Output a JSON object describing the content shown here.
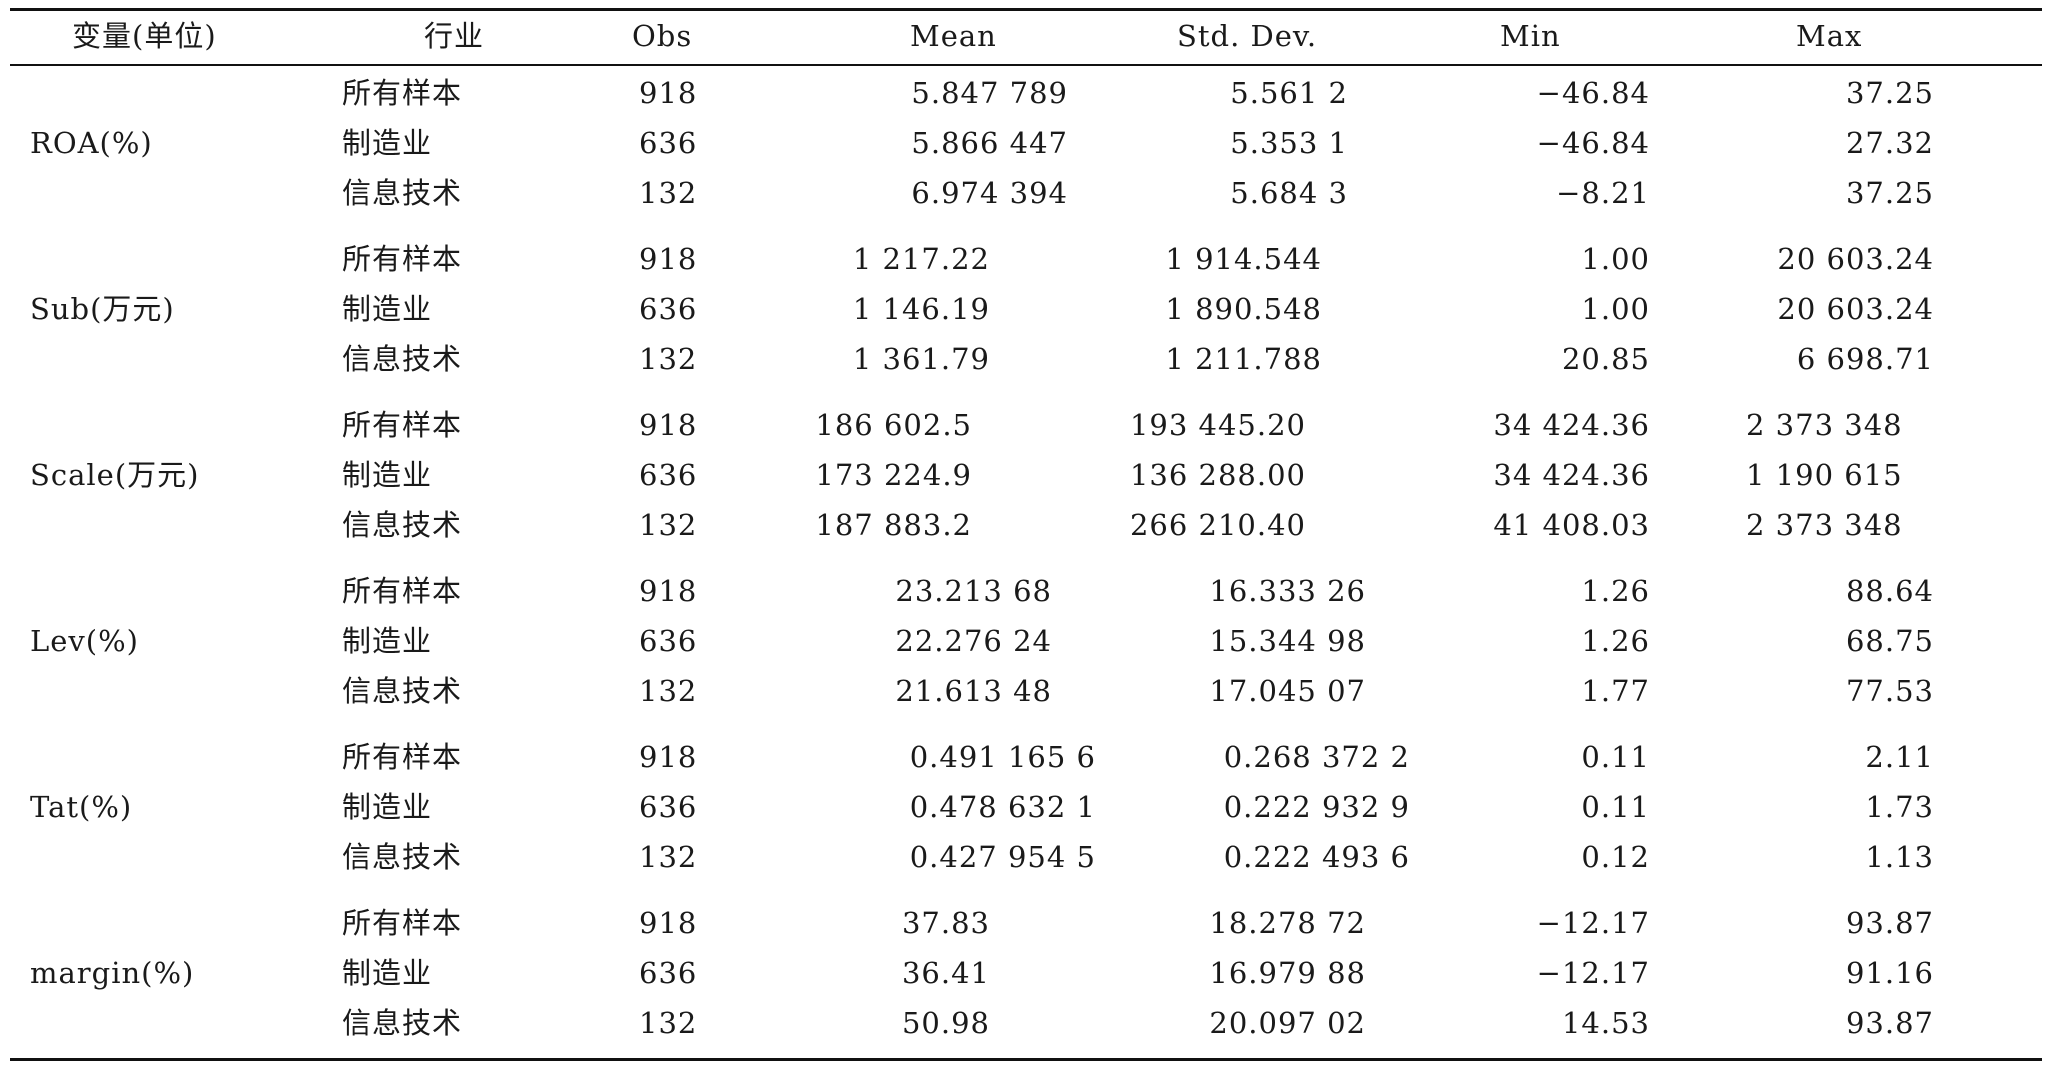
{
  "headers": {
    "variable": "变量(单位)",
    "industry": "行业",
    "obs": "Obs",
    "mean": "Mean",
    "sd": "Std. Dev.",
    "min": "Min",
    "max": "Max"
  },
  "groups": [
    {
      "variable": "ROA(%)",
      "rows": [
        {
          "industry": "所有样本",
          "obs": "918",
          "mean": "5.847 789",
          "sd": "5.561 2",
          "min": "−46.84",
          "max": "37.25"
        },
        {
          "industry": "制造业",
          "obs": "636",
          "mean": "5.866 447",
          "sd": "5.353 1",
          "min": "−46.84",
          "max": "27.32"
        },
        {
          "industry": "信息技术",
          "obs": "132",
          "mean": "6.974 394",
          "sd": "5.684 3",
          "min": "−8.21",
          "max": "37.25"
        }
      ]
    },
    {
      "variable": "Sub(万元)",
      "rows": [
        {
          "industry": "所有样本",
          "obs": "918",
          "mean": "1 217.22",
          "sd": "1 914.544",
          "min": "1.00",
          "max": "20 603.24"
        },
        {
          "industry": "制造业",
          "obs": "636",
          "mean": "1 146.19",
          "sd": "1 890.548",
          "min": "1.00",
          "max": "20 603.24"
        },
        {
          "industry": "信息技术",
          "obs": "132",
          "mean": "1 361.79",
          "sd": "1 211.788",
          "min": "20.85",
          "max": "6 698.71"
        }
      ]
    },
    {
      "variable": "Scale(万元)",
      "rows": [
        {
          "industry": "所有样本",
          "obs": "918",
          "mean": "186 602.5",
          "sd": "193 445.20",
          "min": "34 424.36",
          "max": "2 373 348"
        },
        {
          "industry": "制造业",
          "obs": "636",
          "mean": "173 224.9",
          "sd": "136 288.00",
          "min": "34 424.36",
          "max": "1 190 615"
        },
        {
          "industry": "信息技术",
          "obs": "132",
          "mean": "187 883.2",
          "sd": "266 210.40",
          "min": "41 408.03",
          "max": "2 373 348"
        }
      ]
    },
    {
      "variable": "Lev(%)",
      "rows": [
        {
          "industry": "所有样本",
          "obs": "918",
          "mean": "23.213 68",
          "sd": "16.333 26",
          "min": "1.26",
          "max": "88.64"
        },
        {
          "industry": "制造业",
          "obs": "636",
          "mean": "22.276 24",
          "sd": "15.344 98",
          "min": "1.26",
          "max": "68.75"
        },
        {
          "industry": "信息技术",
          "obs": "132",
          "mean": "21.613 48",
          "sd": "17.045 07",
          "min": "1.77",
          "max": "77.53"
        }
      ]
    },
    {
      "variable": "Tat(%)",
      "rows": [
        {
          "industry": "所有样本",
          "obs": "918",
          "mean": "0.491 165 6",
          "sd": "0.268 372 2",
          "min": "0.11",
          "max": "2.11"
        },
        {
          "industry": "制造业",
          "obs": "636",
          "mean": "0.478 632 1",
          "sd": "0.222 932 9",
          "min": "0.11",
          "max": "1.73"
        },
        {
          "industry": "信息技术",
          "obs": "132",
          "mean": "0.427 954 5",
          "sd": "0.222 493 6",
          "min": "0.12",
          "max": "1.13"
        }
      ]
    },
    {
      "variable": "margin(%)",
      "rows": [
        {
          "industry": "所有样本",
          "obs": "918",
          "mean": "37.83",
          "sd": "18.278 72",
          "min": "−12.17",
          "max": "93.87"
        },
        {
          "industry": "制造业",
          "obs": "636",
          "mean": "36.41",
          "sd": "16.979 88",
          "min": "−12.17",
          "max": "91.16"
        },
        {
          "industry": "信息技术",
          "obs": "132",
          "mean": "50.98",
          "sd": "20.097 02",
          "min": "14.53",
          "max": "93.87"
        }
      ]
    }
  ]
}
